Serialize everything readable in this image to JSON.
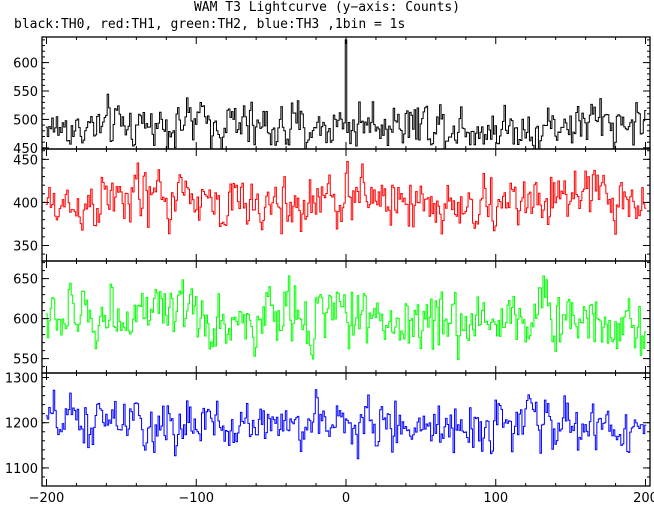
{
  "chart_data": {
    "type": "line",
    "title": "WAM T3 Lightcurve (y−axis: Counts)",
    "subtitle": "black:TH0, red:TH1, green:TH2, blue:TH3 ,1bin = 1s",
    "x_range": [
      -203,
      203
    ],
    "x_ticks": [
      -200,
      -100,
      0,
      100,
      200
    ],
    "x_tick_labels": [
      "−200",
      "−100",
      "0",
      "100",
      "200"
    ],
    "panels": [
      {
        "series_name": "TH0",
        "color": "#000000",
        "ylim": [
          448,
          645
        ],
        "y_ticks": [
          450,
          500,
          550,
          600
        ],
        "baseline": 490,
        "noise": 26,
        "spikes": [
          {
            "x": 0,
            "y": 640
          }
        ],
        "x_start": -200,
        "x_end": 200,
        "x_step": 1
      },
      {
        "series_name": "TH1",
        "color": "#ff0000",
        "ylim": [
          332,
          462
        ],
        "y_ticks": [
          350,
          400,
          450
        ],
        "baseline": 400,
        "noise": 21,
        "x_start": -200,
        "x_end": 200,
        "x_step": 1
      },
      {
        "series_name": "TH2",
        "color": "#00ff00",
        "ylim": [
          532,
          672
        ],
        "y_ticks": [
          550,
          600,
          650
        ],
        "baseline": 600,
        "noise": 25,
        "x_start": -200,
        "x_end": 200,
        "x_step": 1
      },
      {
        "series_name": "TH3",
        "color": "#0000ff",
        "ylim": [
          1060,
          1310
        ],
        "y_ticks": [
          1100,
          1200,
          1300
        ],
        "baseline": 1195,
        "noise": 35,
        "x_start": -200,
        "x_end": 200,
        "x_step": 1
      }
    ]
  }
}
